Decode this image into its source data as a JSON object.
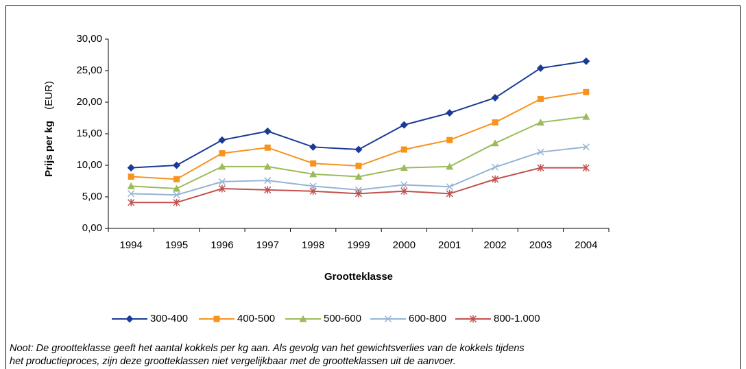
{
  "chart_data": {
    "type": "line",
    "ylabel": "Prijs per kg",
    "ylabel_unit": "(EUR)",
    "xlabel": "Grootteklasse",
    "categories": [
      "1994",
      "1995",
      "1996",
      "1997",
      "1998",
      "1999",
      "2000",
      "2001",
      "2002",
      "2003",
      "2004"
    ],
    "series": [
      {
        "name": "300-400",
        "color": "#1a3a96",
        "marker": "diamond",
        "values": [
          9.6,
          10.0,
          14.0,
          15.4,
          12.9,
          12.5,
          16.4,
          18.3,
          20.7,
          25.4,
          26.5
        ]
      },
      {
        "name": "400-500",
        "color": "#f7931e",
        "marker": "square",
        "values": [
          8.2,
          7.8,
          11.9,
          12.8,
          10.3,
          9.9,
          12.5,
          14.0,
          16.8,
          20.5,
          21.6
        ]
      },
      {
        "name": "500-600",
        "color": "#9bbb59",
        "marker": "triangle",
        "values": [
          6.7,
          6.3,
          9.8,
          9.8,
          8.6,
          8.2,
          9.6,
          9.8,
          13.5,
          16.8,
          17.7
        ]
      },
      {
        "name": "600-800",
        "color": "#95b3d7",
        "marker": "x",
        "values": [
          5.5,
          5.3,
          7.4,
          7.6,
          6.7,
          6.1,
          6.9,
          6.6,
          9.7,
          12.1,
          12.9
        ]
      },
      {
        "name": "800-1.000",
        "color": "#c0504d",
        "marker": "star",
        "values": [
          4.1,
          4.1,
          6.3,
          6.1,
          5.9,
          5.5,
          5.9,
          5.5,
          7.8,
          9.6,
          9.6
        ]
      }
    ],
    "ylim": [
      0,
      30
    ],
    "yticks": [
      {
        "value": 0,
        "label": "0,00"
      },
      {
        "value": 5,
        "label": "5,00"
      },
      {
        "value": 10,
        "label": "10,00"
      },
      {
        "value": 15,
        "label": "15,00"
      },
      {
        "value": 20,
        "label": "20,00"
      },
      {
        "value": 25,
        "label": "25,00"
      },
      {
        "value": 30,
        "label": "30,00"
      }
    ],
    "grid": false,
    "legend": "bottom",
    "note": [
      "Noot: De grootteklasse geeft het aantal kokkels per kg aan. Als gevolg van het gewichtsverlies van de kokkels tijdens",
      "het productieproces, zijn deze grootteklassen niet vergelijkbaar met de grootteklassen uit de aanvoer."
    ]
  }
}
